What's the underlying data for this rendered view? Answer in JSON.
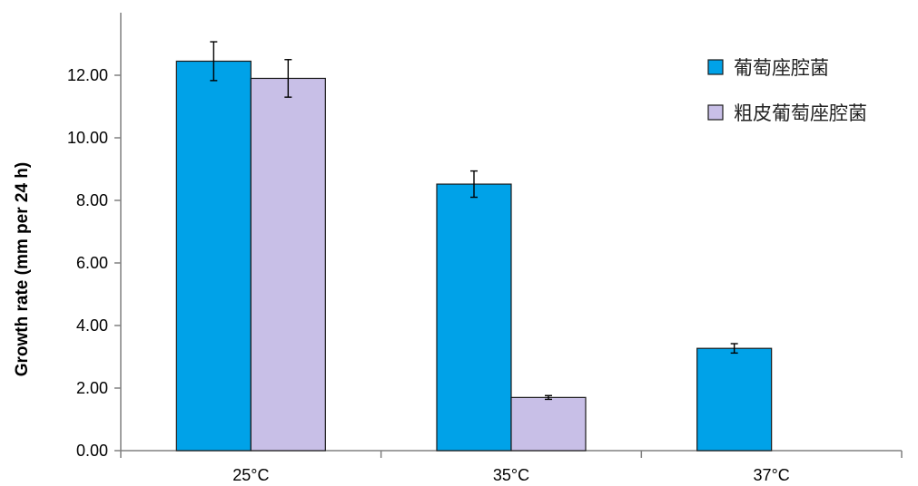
{
  "chart_data": {
    "type": "bar",
    "title": "",
    "xlabel": "",
    "ylabel": "Growth rate (mm per 24 h)",
    "ylim": [
      0,
      14
    ],
    "yticks": [
      "0.00",
      "2.00",
      "4.00",
      "6.00",
      "8.00",
      "10.00",
      "12.00"
    ],
    "categories": [
      "25°C",
      "35°C",
      "37°C"
    ],
    "series": [
      {
        "name": "葡萄座腔菌",
        "color": "#00a2e8",
        "values": [
          12.45,
          8.52,
          3.27
        ],
        "errors": [
          0.62,
          0.42,
          0.15
        ]
      },
      {
        "name": "粗皮葡萄座腔菌",
        "color": "#c8bfe7",
        "values": [
          11.9,
          1.7,
          null
        ],
        "errors": [
          0.6,
          0.06,
          null
        ]
      }
    ],
    "grid": false,
    "legend_position": "top-right"
  }
}
